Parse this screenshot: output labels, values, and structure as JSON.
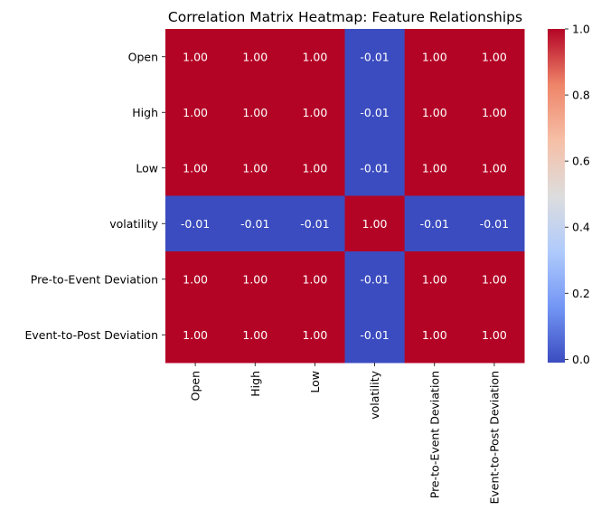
{
  "chart_data": {
    "type": "heatmap",
    "title": "Correlation Matrix Heatmap: Feature Relationships",
    "xlabel": "",
    "ylabel": "",
    "rows": [
      "Open",
      "High",
      "Low",
      "volatility",
      "Pre-to-Event Deviation",
      "Event-to-Post Deviation"
    ],
    "columns": [
      "Open",
      "High",
      "Low",
      "volatility",
      "Pre-to-Event Deviation",
      "Event-to-Post Deviation"
    ],
    "values": [
      [
        1.0,
        1.0,
        1.0,
        -0.01,
        1.0,
        1.0
      ],
      [
        1.0,
        1.0,
        1.0,
        -0.01,
        1.0,
        1.0
      ],
      [
        1.0,
        1.0,
        1.0,
        -0.01,
        1.0,
        1.0
      ],
      [
        -0.01,
        -0.01,
        -0.01,
        1.0,
        -0.01,
        -0.01
      ],
      [
        1.0,
        1.0,
        1.0,
        -0.01,
        1.0,
        1.0
      ],
      [
        1.0,
        1.0,
        1.0,
        -0.01,
        1.0,
        1.0
      ]
    ],
    "annotation_format": "0.00",
    "colormap": "coolwarm",
    "colormap_stops": [
      "#3b4cc0",
      "#7396f5",
      "#b0cbfc",
      "#dddddd",
      "#f6bfa6",
      "#ee8468",
      "#b40426"
    ],
    "color_range": [
      -0.01,
      1.0
    ],
    "colorbar_ticks": [
      "0.0",
      "0.2",
      "0.4",
      "0.6",
      "0.8",
      "1.0"
    ],
    "grid": false
  }
}
